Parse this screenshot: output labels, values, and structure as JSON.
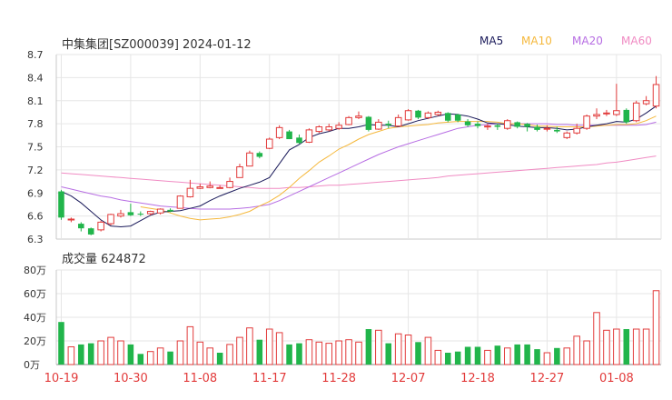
{
  "title": "中集集团[SZ000039] 2024-01-12",
  "legend": [
    {
      "label": "MA5",
      "color": "#1a1a5a"
    },
    {
      "label": "MA10",
      "color": "#f5b83c"
    },
    {
      "label": "MA20",
      "color": "#b76de3"
    },
    {
      "label": "MA60",
      "color": "#f08bc3"
    }
  ],
  "volume_label": "成交量 624872",
  "colors": {
    "up": "#e23b3b",
    "down": "#21b54b",
    "grid": "#e6e6e6",
    "axis": "#c8c8c8",
    "date": "#e23b3b"
  },
  "chart_data": [
    {
      "type": "candlestick",
      "ylim": [
        6.3,
        8.7
      ],
      "yticks": [
        "8.7",
        "8.4",
        "8.1",
        "7.8",
        "7.5",
        "7.2",
        "6.9",
        "6.6",
        "6.3"
      ],
      "ytick_values": [
        8.7,
        8.4,
        8.1,
        7.8,
        7.5,
        7.2,
        6.9,
        6.6,
        6.3
      ],
      "x_labels": [
        "10-19",
        "10-30",
        "11-08",
        "11-17",
        "11-28",
        "12-07",
        "12-18",
        "12-27",
        "01-08"
      ],
      "x_label_index": [
        0,
        7,
        14,
        21,
        28,
        35,
        42,
        49,
        56
      ],
      "candles": [
        [
          6.92,
          6.58,
          6.94,
          6.55
        ],
        [
          6.55,
          6.56,
          6.58,
          6.52
        ],
        [
          6.5,
          6.44,
          6.52,
          6.4
        ],
        [
          6.44,
          6.36,
          6.45,
          6.35
        ],
        [
          6.42,
          6.52,
          6.54,
          6.4
        ],
        [
          6.5,
          6.62,
          6.63,
          6.48
        ],
        [
          6.6,
          6.63,
          6.68,
          6.58
        ],
        [
          6.65,
          6.61,
          6.76,
          6.6
        ],
        [
          6.63,
          6.62,
          6.66,
          6.6
        ],
        [
          6.63,
          6.66,
          6.67,
          6.61
        ],
        [
          6.64,
          6.69,
          6.7,
          6.62
        ],
        [
          6.68,
          6.66,
          6.7,
          6.65
        ],
        [
          6.7,
          6.86,
          6.87,
          6.7
        ],
        [
          6.85,
          6.96,
          7.07,
          6.84
        ],
        [
          6.96,
          6.98,
          7.02,
          6.95
        ],
        [
          6.97,
          6.99,
          7.05,
          6.96
        ],
        [
          6.97,
          6.97,
          7.0,
          6.96
        ],
        [
          6.97,
          7.05,
          7.1,
          6.96
        ],
        [
          7.1,
          7.24,
          7.28,
          7.1
        ],
        [
          7.25,
          7.42,
          7.45,
          7.25
        ],
        [
          7.42,
          7.37,
          7.44,
          7.35
        ],
        [
          7.48,
          7.6,
          7.62,
          7.47
        ],
        [
          7.62,
          7.75,
          7.78,
          7.6
        ],
        [
          7.7,
          7.6,
          7.72,
          7.6
        ],
        [
          7.62,
          7.55,
          7.66,
          7.54
        ],
        [
          7.56,
          7.72,
          7.74,
          7.55
        ],
        [
          7.7,
          7.76,
          7.78,
          7.68
        ],
        [
          7.72,
          7.76,
          7.8,
          7.7
        ],
        [
          7.74,
          7.78,
          7.82,
          7.72
        ],
        [
          7.79,
          7.88,
          7.9,
          7.78
        ],
        [
          7.88,
          7.9,
          7.96,
          7.86
        ],
        [
          7.89,
          7.72,
          7.9,
          7.7
        ],
        [
          7.73,
          7.82,
          7.86,
          7.72
        ],
        [
          7.8,
          7.78,
          7.84,
          7.74
        ],
        [
          7.77,
          7.88,
          7.92,
          7.76
        ],
        [
          7.85,
          7.97,
          7.99,
          7.84
        ],
        [
          7.97,
          7.88,
          7.98,
          7.86
        ],
        [
          7.88,
          7.94,
          7.96,
          7.86
        ],
        [
          7.92,
          7.95,
          7.97,
          7.9
        ],
        [
          7.94,
          7.84,
          7.95,
          7.82
        ],
        [
          7.92,
          7.84,
          7.93,
          7.82
        ],
        [
          7.83,
          7.78,
          7.86,
          7.76
        ],
        [
          7.8,
          7.77,
          7.83,
          7.74
        ],
        [
          7.76,
          7.77,
          7.8,
          7.72
        ],
        [
          7.78,
          7.76,
          7.8,
          7.72
        ],
        [
          7.74,
          7.84,
          7.86,
          7.72
        ],
        [
          7.82,
          7.76,
          7.83,
          7.74
        ],
        [
          7.8,
          7.76,
          7.81,
          7.7
        ],
        [
          7.76,
          7.72,
          7.79,
          7.7
        ],
        [
          7.74,
          7.74,
          7.78,
          7.7
        ],
        [
          7.72,
          7.7,
          7.76,
          7.68
        ],
        [
          7.62,
          7.68,
          7.7,
          7.6
        ],
        [
          7.68,
          7.74,
          7.8,
          7.66
        ],
        [
          7.74,
          7.9,
          7.92,
          7.72
        ],
        [
          7.9,
          7.92,
          8.0,
          7.86
        ],
        [
          7.94,
          7.94,
          7.98,
          7.9
        ],
        [
          7.92,
          7.97,
          8.32,
          7.9
        ],
        [
          7.98,
          7.82,
          8.0,
          7.8
        ],
        [
          7.84,
          8.07,
          8.1,
          7.82
        ],
        [
          8.06,
          8.1,
          8.16,
          8.04
        ],
        [
          8.03,
          8.31,
          8.42,
          8.0
        ]
      ],
      "ma5": [
        6.92,
        6.86,
        6.77,
        6.66,
        6.55,
        6.47,
        6.46,
        6.47,
        6.54,
        6.61,
        6.65,
        6.66,
        6.67,
        6.7,
        6.73,
        6.8,
        6.86,
        6.91,
        6.96,
        7.0,
        7.04,
        7.1,
        7.28,
        7.46,
        7.53,
        7.62,
        7.67,
        7.7,
        7.74,
        7.74,
        7.76,
        7.79,
        7.78,
        7.78,
        7.76,
        7.8,
        7.84,
        7.87,
        7.9,
        7.93,
        7.92,
        7.9,
        7.86,
        7.81,
        7.8,
        7.79,
        7.77,
        7.76,
        7.75,
        7.75,
        7.74,
        7.72,
        7.73,
        7.76,
        7.78,
        7.8,
        7.83,
        7.82,
        7.86,
        7.94,
        8.03
      ],
      "ma10": [
        null,
        null,
        null,
        null,
        null,
        null,
        null,
        null,
        6.72,
        6.7,
        6.68,
        6.64,
        6.6,
        6.57,
        6.55,
        6.56,
        6.57,
        6.59,
        6.62,
        6.66,
        6.73,
        6.79,
        6.87,
        6.97,
        7.09,
        7.19,
        7.3,
        7.38,
        7.47,
        7.53,
        7.6,
        7.66,
        7.7,
        7.74,
        7.76,
        7.77,
        7.78,
        7.79,
        7.81,
        7.82,
        7.83,
        7.83,
        7.83,
        7.83,
        7.82,
        7.8,
        7.8,
        7.79,
        7.77,
        7.77,
        7.76,
        7.76,
        7.76,
        7.76,
        7.77,
        7.78,
        7.79,
        7.79,
        7.8,
        7.84,
        7.9
      ],
      "ma20": [
        6.98,
        6.95,
        6.92,
        6.89,
        6.86,
        6.84,
        6.81,
        6.79,
        6.77,
        6.75,
        6.73,
        6.72,
        6.71,
        6.7,
        6.69,
        6.69,
        6.69,
        6.69,
        6.7,
        6.71,
        6.73,
        6.75,
        6.8,
        6.86,
        6.92,
        6.98,
        7.04,
        7.1,
        7.16,
        7.22,
        7.28,
        7.34,
        7.4,
        7.45,
        7.5,
        7.54,
        7.58,
        7.62,
        7.66,
        7.7,
        7.74,
        7.76,
        7.78,
        7.79,
        7.8,
        7.8,
        7.8,
        7.8,
        7.8,
        7.8,
        7.79,
        7.79,
        7.78,
        7.78,
        7.78,
        7.78,
        7.78,
        7.78,
        7.78,
        7.79,
        7.82
      ],
      "ma60": [
        7.16,
        7.15,
        7.14,
        7.13,
        7.12,
        7.11,
        7.1,
        7.09,
        7.08,
        7.07,
        7.06,
        7.05,
        7.04,
        7.03,
        7.02,
        7.01,
        7.0,
        6.99,
        6.98,
        6.97,
        6.96,
        6.96,
        6.96,
        6.97,
        6.97,
        6.98,
        6.99,
        7.0,
        7.0,
        7.01,
        7.02,
        7.03,
        7.04,
        7.05,
        7.06,
        7.07,
        7.08,
        7.09,
        7.1,
        7.12,
        7.13,
        7.14,
        7.15,
        7.16,
        7.17,
        7.18,
        7.19,
        7.2,
        7.21,
        7.22,
        7.23,
        7.24,
        7.25,
        7.26,
        7.27,
        7.29,
        7.3,
        7.32,
        7.34,
        7.36,
        7.38
      ]
    },
    {
      "type": "bar",
      "title": "成交量 624872",
      "ylim": [
        0,
        800000
      ],
      "yticks": [
        "80万",
        "60万",
        "40万",
        "20万",
        "0万"
      ],
      "ytick_values": [
        800000,
        600000,
        400000,
        200000,
        0
      ],
      "values": [
        360000,
        150000,
        170000,
        180000,
        200000,
        230000,
        200000,
        170000,
        90000,
        110000,
        140000,
        110000,
        200000,
        320000,
        190000,
        140000,
        100000,
        170000,
        230000,
        310000,
        210000,
        300000,
        270000,
        170000,
        180000,
        210000,
        190000,
        180000,
        200000,
        210000,
        190000,
        300000,
        290000,
        180000,
        260000,
        250000,
        190000,
        230000,
        120000,
        100000,
        110000,
        150000,
        150000,
        120000,
        160000,
        140000,
        170000,
        170000,
        130000,
        100000,
        140000,
        140000,
        240000,
        200000,
        440000,
        290000,
        300000,
        300000,
        300000,
        300000,
        624872
      ],
      "up": [
        false,
        true,
        false,
        false,
        true,
        true,
        true,
        false,
        false,
        true,
        true,
        false,
        true,
        true,
        true,
        true,
        false,
        true,
        true,
        true,
        false,
        true,
        true,
        false,
        false,
        true,
        true,
        true,
        true,
        true,
        true,
        false,
        true,
        false,
        true,
        true,
        false,
        true,
        true,
        false,
        false,
        false,
        false,
        true,
        false,
        true,
        false,
        false,
        false,
        true,
        false,
        true,
        true,
        true,
        true,
        true,
        true,
        false,
        true,
        true,
        true
      ]
    }
  ]
}
